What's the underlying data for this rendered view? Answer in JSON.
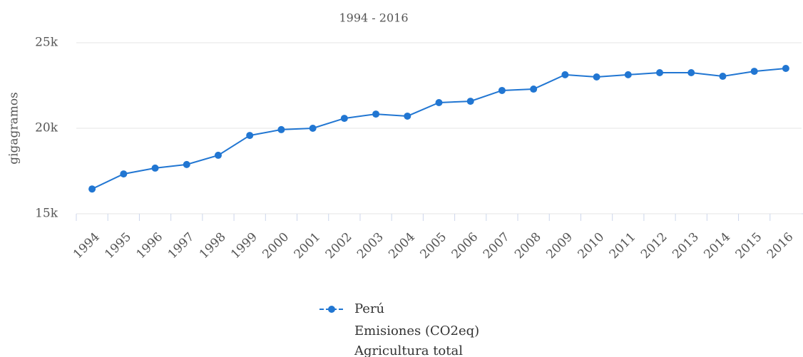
{
  "chart_data": {
    "type": "line",
    "subtitle": "1994 - 2016",
    "y_label": "gigagramos",
    "categories": [
      "1994",
      "1995",
      "1996",
      "1997",
      "1998",
      "1999",
      "2000",
      "2001",
      "2002",
      "2003",
      "2004",
      "2005",
      "2006",
      "2007",
      "2008",
      "2009",
      "2010",
      "2011",
      "2012",
      "2013",
      "2014",
      "2015",
      "2016"
    ],
    "series": [
      {
        "name": "Perú",
        "color": "#2176d2",
        "values": [
          16450,
          17330,
          17670,
          17880,
          18420,
          19580,
          19920,
          20000,
          20580,
          20830,
          20710,
          21500,
          21580,
          22210,
          22290,
          23130,
          23000,
          23130,
          23250,
          23250,
          23040,
          23330,
          23500
        ]
      }
    ],
    "legend_lines": [
      "Emisiones (CO2eq)",
      "Agricultura total"
    ],
    "ylim": [
      15000,
      25000
    ],
    "yticks": [
      {
        "value": 15000,
        "label": "15k"
      },
      {
        "value": 20000,
        "label": "20k"
      },
      {
        "value": 25000,
        "label": "25k"
      }
    ],
    "grid": true
  }
}
